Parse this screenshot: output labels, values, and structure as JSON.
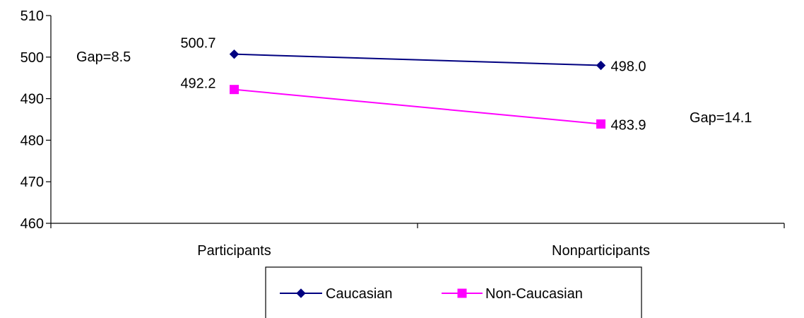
{
  "chart_data": {
    "type": "line",
    "categories": [
      "Participants",
      "Nonparticipants"
    ],
    "series": [
      {
        "name": "Caucasian",
        "values": [
          500.7,
          498.0
        ],
        "value_labels": [
          "500.7",
          "498.0"
        ],
        "color": "#000080",
        "marker": "diamond"
      },
      {
        "name": "Non-Caucasian",
        "values": [
          492.2,
          483.9
        ],
        "value_labels": [
          "492.2",
          "483.9"
        ],
        "color": "#FF00FF",
        "marker": "square"
      }
    ],
    "ylim": [
      460,
      510
    ],
    "yticks": [
      460,
      470,
      480,
      490,
      500,
      510
    ],
    "ytick_labels": [
      "460",
      "470",
      "480",
      "490",
      "500",
      "510"
    ],
    "title": "",
    "xlabel": "",
    "ylabel": "",
    "grid": false,
    "legend_position": "bottom",
    "annotations": [
      {
        "text": "Gap=8.5",
        "category": "Participants"
      },
      {
        "text": "Gap=14.1",
        "category": "Nonparticipants"
      }
    ]
  }
}
